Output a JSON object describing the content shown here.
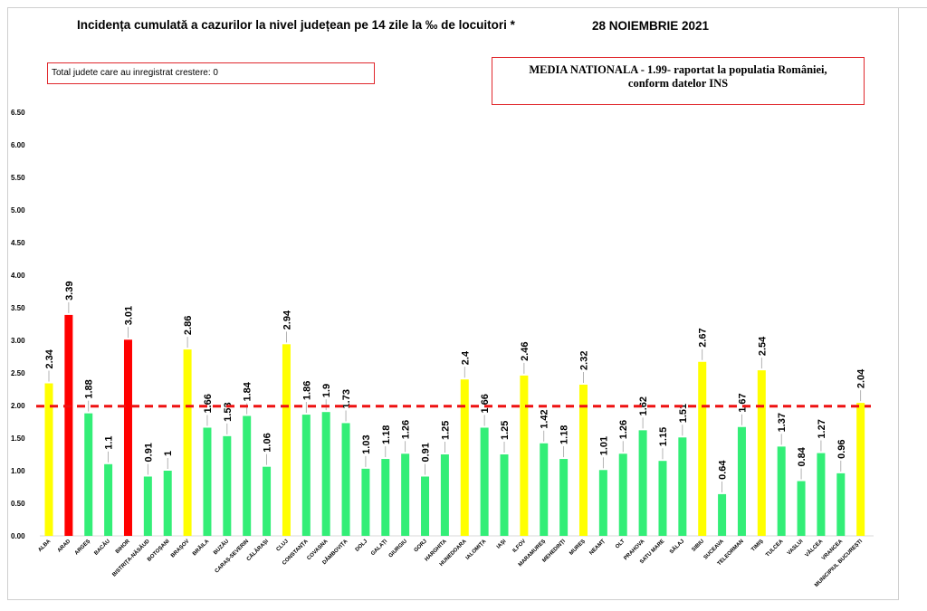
{
  "header": {
    "title": "Incidența cumulată a cazurilor la nivel județean pe 14 zile la ‰ de locuitori *",
    "date": "28 NOIEMBRIE 2021"
  },
  "notes": {
    "total_increase": "Total judete care au inregistrat crestere: 0",
    "media_line1": "MEDIA NATIONALA - 1.99-  raportat la populatia României,",
    "media_line2": "conform datelor INS"
  },
  "colors": {
    "red": "#ff0000",
    "yellow": "#ffff00",
    "green": "#33ee77",
    "refline": "#ee1111"
  },
  "chart_data": {
    "type": "bar",
    "title": "Incidența cumulată a cazurilor la nivel județean pe 14 zile la ‰ de locuitori *",
    "ylim": [
      0,
      6.5
    ],
    "yticks": [
      "0.00",
      "0.50",
      "1.00",
      "1.50",
      "2.00",
      "2.50",
      "3.00",
      "3.50",
      "4.00",
      "4.50",
      "5.00",
      "5.50",
      "6.00",
      "6.50"
    ],
    "reference_line": 1.99,
    "categories": [
      "ALBA",
      "ARAD",
      "ARGEȘ",
      "BACĂU",
      "BIHOR",
      "BISTRIȚA-NĂSĂUD",
      "BOTOȘANI",
      "BRAȘOV",
      "BRĂILA",
      "BUZĂU",
      "CARAȘ-SEVERIN",
      "CĂLĂRAȘI",
      "CLUJ",
      "CONSTANȚA",
      "COVASNA",
      "DÂMBOVIȚA",
      "DOLJ",
      "GALAȚI",
      "GIURGIU",
      "GORJ",
      "HARGHITA",
      "HUNEDOARA",
      "IALOMIȚA",
      "IAȘI",
      "ILFOV",
      "MARAMUREȘ",
      "MEHEDINȚI",
      "MUREȘ",
      "NEAMȚ",
      "OLT",
      "PRAHOVA",
      "SATU MARE",
      "SĂLAJ",
      "SIBIU",
      "SUCEAVA",
      "TELEORMAN",
      "TIMIȘ",
      "TULCEA",
      "VASLUI",
      "VÂLCEA",
      "VRANCEA",
      "MUNICIPIUL BUCUREȘTI"
    ],
    "labels": [
      "2.34",
      "3.39",
      "1.88",
      "1.1",
      "3.01",
      "0.91",
      "1",
      "2.86",
      "1.66",
      "1.53",
      "1.84",
      "1.06",
      "2.94",
      "1.86",
      "1.9",
      "1.73",
      "1.03",
      "1.18",
      "1.26",
      "0.91",
      "1.25",
      "2.4",
      "1.66",
      "1.25",
      "2.46",
      "1.42",
      "1.18",
      "2.32",
      "1.01",
      "1.26",
      "1.62",
      "1.15",
      "1.51",
      "2.67",
      "0.64",
      "1.67",
      "2.54",
      "1.37",
      "0.84",
      "1.27",
      "0.96",
      "2.04"
    ],
    "values": [
      2.34,
      3.39,
      1.88,
      1.1,
      3.01,
      0.91,
      1,
      2.86,
      1.66,
      1.53,
      1.84,
      1.06,
      2.94,
      1.86,
      1.9,
      1.73,
      1.03,
      1.18,
      1.26,
      0.91,
      1.25,
      2.4,
      1.66,
      1.25,
      2.46,
      1.42,
      1.18,
      2.32,
      1.01,
      1.26,
      1.62,
      1.15,
      1.51,
      2.67,
      0.64,
      1.67,
      2.54,
      1.37,
      0.84,
      1.27,
      0.96,
      2.04
    ],
    "bar_colors": [
      "yellow",
      "red",
      "green",
      "green",
      "red",
      "green",
      "green",
      "yellow",
      "green",
      "green",
      "green",
      "green",
      "yellow",
      "green",
      "green",
      "green",
      "green",
      "green",
      "green",
      "green",
      "green",
      "yellow",
      "green",
      "green",
      "yellow",
      "green",
      "green",
      "yellow",
      "green",
      "green",
      "green",
      "green",
      "green",
      "yellow",
      "green",
      "green",
      "yellow",
      "green",
      "green",
      "green",
      "green",
      "yellow"
    ]
  }
}
